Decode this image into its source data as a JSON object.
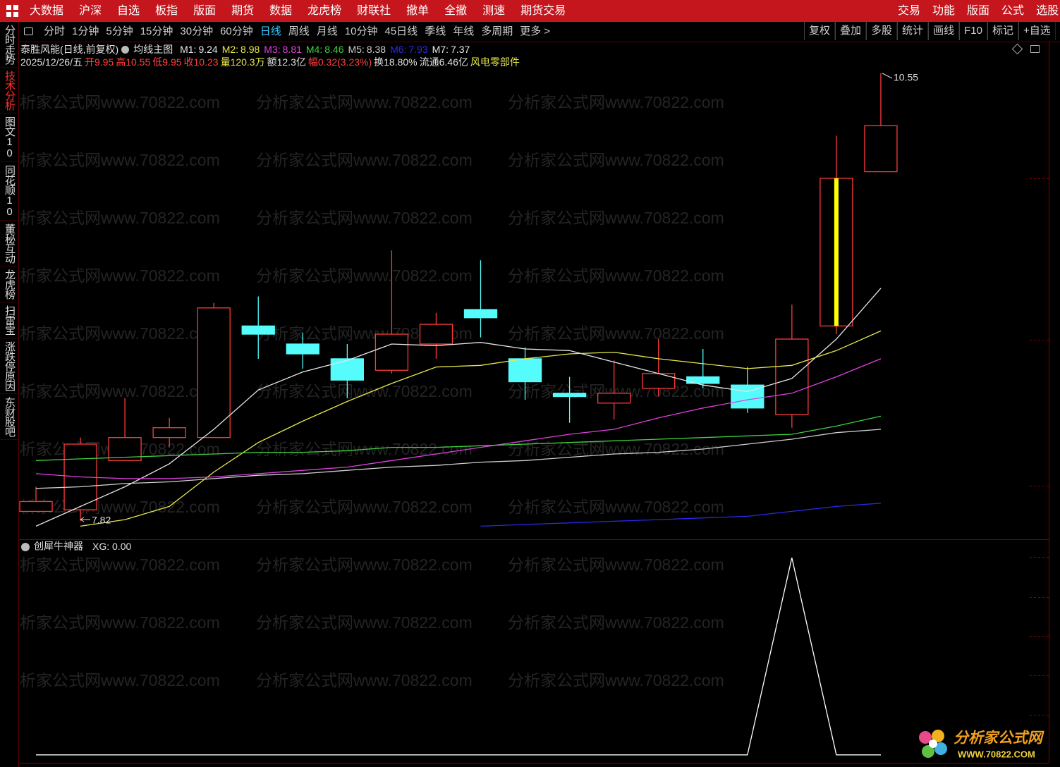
{
  "top_menu": {
    "left": [
      "大数据",
      "沪深",
      "自选",
      "板指",
      "版面",
      "期货",
      "数据",
      "龙虎榜",
      "财联社",
      "撤单",
      "全撤",
      "测速",
      "期货交易"
    ],
    "right": [
      "交易",
      "功能",
      "版面",
      "公式",
      "选股"
    ]
  },
  "toolbar": {
    "left": [
      "分时",
      "1分钟",
      "5分钟",
      "15分钟",
      "30分钟",
      "60分钟",
      "日线",
      "周线",
      "月线",
      "10分钟",
      "45日线",
      "季线",
      "年线",
      "多周期",
      "更多 >"
    ],
    "active": 6,
    "right": [
      "复权",
      "叠加",
      "多股",
      "统计",
      "画线",
      "F10",
      "标记",
      "+自选"
    ]
  },
  "side_tabs": {
    "items": [
      "分时走势",
      "技术分析",
      "图文10",
      "同花顺10",
      "董秘互动",
      "龙虎榜",
      "扫雷宝",
      "涨跌停原因",
      "东财股吧"
    ],
    "active": 1
  },
  "watermark": "分析家公式网www.70822.com",
  "logo": {
    "name": "分析家公式网",
    "url": "WWW.70822.COM"
  },
  "chart_data": [
    {
      "type": "candlestick",
      "title": "泰胜风能(日线,前复权)",
      "indicator": "均线主图",
      "info": [
        {
          "text": "2025/12/26/五",
          "color": "#e0e0e0"
        },
        {
          "text": "开9.95",
          "color": "#ff4040"
        },
        {
          "text": "高10.55",
          "color": "#ff4040"
        },
        {
          "text": "低9.95",
          "color": "#ff4040"
        },
        {
          "text": "收10.23",
          "color": "#ff4040"
        },
        {
          "text": "量120.3万",
          "color": "#e8e84a"
        },
        {
          "text": "额12.3亿",
          "color": "#e0e0e0"
        },
        {
          "text": "幅0.32(3.23%)",
          "color": "#ff4040"
        },
        {
          "text": "换18.80%",
          "color": "#e0e0e0"
        },
        {
          "text": "流通6.46亿",
          "color": "#e0e0e0"
        },
        {
          "text": "风电零部件",
          "color": "#e8e84a"
        }
      ],
      "up_color": "#ff3b3b",
      "down_color": "#54fcfc",
      "highlight": 18,
      "highlight_color": "#ffff00",
      "open": [
        7.88,
        7.89,
        8.19,
        8.33,
        8.33,
        9.01,
        8.9,
        8.81,
        8.74,
        8.9,
        9.11,
        8.81,
        8.6,
        8.54,
        8.63,
        8.7,
        8.65,
        8.47,
        9.01,
        9.95
      ],
      "high": [
        8.03,
        8.33,
        8.57,
        8.45,
        9.15,
        9.19,
        8.97,
        8.9,
        9.47,
        9.09,
        9.41,
        8.88,
        8.7,
        8.8,
        8.93,
        8.87,
        8.76,
        9.14,
        10.17,
        10.55
      ],
      "low": [
        7.88,
        7.82,
        8.19,
        8.27,
        8.33,
        8.81,
        8.75,
        8.57,
        8.72,
        8.81,
        8.94,
        8.56,
        8.42,
        8.44,
        8.58,
        8.63,
        8.48,
        8.39,
        8.96,
        9.95
      ],
      "close": [
        7.94,
        8.29,
        8.33,
        8.39,
        9.12,
        8.96,
        8.84,
        8.68,
        8.96,
        9.02,
        9.06,
        8.67,
        8.58,
        8.6,
        8.72,
        8.66,
        8.51,
        8.93,
        9.91,
        10.23
      ],
      "series": [
        {
          "name": "M1:",
          "current": 9.24,
          "color": "#e6e6e6",
          "values": [
            7.79,
            7.91,
            8.03,
            8.17,
            8.38,
            8.62,
            8.73,
            8.8,
            8.9,
            8.89,
            8.91,
            8.87,
            8.86,
            8.79,
            8.72,
            8.65,
            8.61,
            8.69,
            8.93,
            9.24
          ]
        },
        {
          "name": "M2:",
          "current": 8.98,
          "color": "#e8e84a",
          "values": [
            null,
            7.79,
            7.83,
            7.91,
            8.12,
            8.3,
            8.43,
            8.55,
            8.66,
            8.76,
            8.77,
            8.81,
            8.84,
            8.85,
            8.81,
            8.78,
            8.75,
            8.77,
            8.86,
            8.98
          ]
        },
        {
          "name": "M3:",
          "current": 8.81,
          "color": "#e040e0",
          "values": [
            8.11,
            8.09,
            8.08,
            8.08,
            8.09,
            8.11,
            8.13,
            8.15,
            8.19,
            8.23,
            8.27,
            8.31,
            8.35,
            8.38,
            8.45,
            8.51,
            8.56,
            8.6,
            8.7,
            8.81
          ]
        },
        {
          "name": "M4:",
          "current": 8.46,
          "color": "#40d040",
          "values": [
            8.19,
            8.2,
            8.21,
            8.22,
            8.23,
            8.24,
            8.24,
            8.25,
            8.27,
            8.27,
            8.28,
            8.29,
            8.3,
            8.31,
            8.32,
            8.33,
            8.34,
            8.35,
            8.4,
            8.46
          ]
        },
        {
          "name": "M5:",
          "current": 8.38,
          "color": "#cfcfcf",
          "values": [
            8.02,
            8.03,
            8.05,
            8.06,
            8.08,
            8.1,
            8.11,
            8.13,
            8.15,
            8.16,
            8.18,
            8.19,
            8.21,
            8.23,
            8.24,
            8.26,
            8.29,
            8.32,
            8.36,
            8.38
          ]
        },
        {
          "name": "M6:",
          "current": 7.93,
          "color": "#2a2ae6",
          "values": [
            null,
            null,
            null,
            null,
            null,
            null,
            null,
            null,
            null,
            null,
            7.79,
            7.8,
            7.81,
            7.82,
            7.83,
            7.84,
            7.85,
            7.88,
            7.91,
            7.93
          ]
        },
        {
          "name": "M7:",
          "current": 7.37,
          "color": "#e6e6e6",
          "values": [
            null,
            null,
            null,
            null,
            null,
            null,
            null,
            null,
            null,
            null,
            null,
            null,
            null,
            null,
            null,
            null,
            null,
            null,
            null,
            null
          ]
        }
      ],
      "ylim": [
        7.71,
        10.73
      ]
    },
    {
      "type": "line",
      "title": "创犀牛神器",
      "series": [
        {
          "name": "XG:",
          "value_label": "0.00",
          "color": "#ffffff",
          "values": [
            0,
            0,
            0,
            0,
            0,
            0,
            0,
            0,
            0,
            0,
            0,
            0,
            0,
            0,
            0,
            0,
            0,
            1,
            0,
            0
          ]
        }
      ],
      "ylim": [
        -0.04,
        1.09
      ]
    }
  ]
}
